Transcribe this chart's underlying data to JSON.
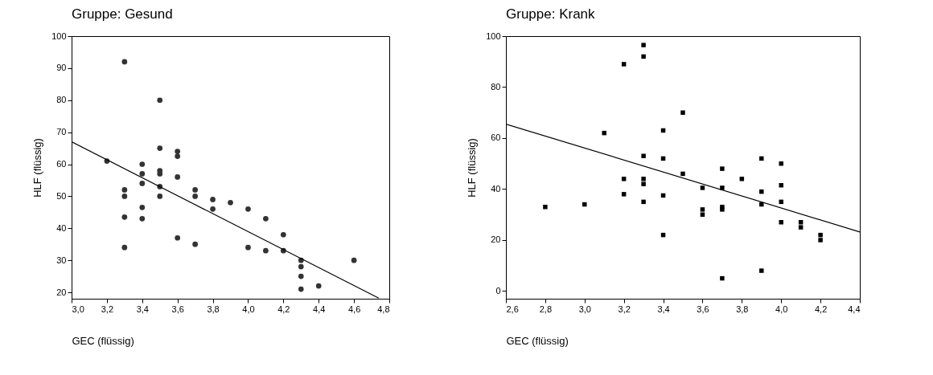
{
  "chart_data": [
    {
      "type": "scatter",
      "title": "Gruppe: Gesund",
      "xlabel": "GEC (flüssig)",
      "ylabel": "HLF (flüssig)",
      "grid": false,
      "xlim": [
        3.0,
        4.8
      ],
      "xticks": [
        {
          "value": 3.0,
          "label": "3,0"
        },
        {
          "value": 3.2,
          "label": "3,2"
        },
        {
          "value": 3.4,
          "label": "3,4"
        },
        {
          "value": 3.6,
          "label": "3,6"
        },
        {
          "value": 3.8,
          "label": "3,8"
        },
        {
          "value": 4.0,
          "label": "4,0"
        },
        {
          "value": 4.2,
          "label": "4,2"
        },
        {
          "value": 4.4,
          "label": "4,4"
        },
        {
          "value": 4.6,
          "label": "4,6"
        },
        {
          "value": 4.8,
          "label": "4,8"
        }
      ],
      "ylim": [
        18,
        100
      ],
      "yticks": [
        20,
        30,
        40,
        50,
        60,
        70,
        80,
        90,
        100
      ],
      "series": [
        {
          "marker": "circle",
          "color": "#333333",
          "x": [
            3.2,
            3.3,
            3.3,
            3.3,
            3.3,
            3.3,
            3.4,
            3.4,
            3.4,
            3.4,
            3.4,
            3.5,
            3.5,
            3.5,
            3.5,
            3.5,
            3.5,
            3.6,
            3.6,
            3.6,
            3.6,
            3.7,
            3.7,
            3.7,
            3.8,
            3.8,
            3.9,
            4.0,
            4.0,
            4.1,
            4.1,
            4.2,
            4.2,
            4.3,
            4.3,
            4.3,
            4.3,
            4.4,
            4.6
          ],
          "values": [
            61,
            92,
            52,
            50,
            43.5,
            34,
            60,
            57,
            54,
            46.5,
            43,
            80,
            65,
            58,
            57,
            53,
            50,
            64,
            62.5,
            56,
            37,
            52,
            50,
            35,
            49,
            46,
            48,
            46,
            34,
            43,
            33,
            38,
            33,
            30,
            28,
            25,
            21,
            22,
            30
          ]
        },
        {
          "type": "line",
          "color": "#000000",
          "x": [
            3.0,
            4.74
          ],
          "values": [
            67,
            18.2
          ]
        }
      ]
    },
    {
      "type": "scatter",
      "title": "Gruppe: Krank",
      "xlabel": "GEC (flüssig)",
      "ylabel": "HLF (flüssig)",
      "grid": false,
      "xlim": [
        2.6,
        4.4
      ],
      "xticks": [
        {
          "value": 2.6,
          "label": "2,6"
        },
        {
          "value": 2.8,
          "label": "2,8"
        },
        {
          "value": 3.0,
          "label": "3,0"
        },
        {
          "value": 3.2,
          "label": "3,2"
        },
        {
          "value": 3.4,
          "label": "3,4"
        },
        {
          "value": 3.6,
          "label": "3,6"
        },
        {
          "value": 3.8,
          "label": "3,8"
        },
        {
          "value": 4.0,
          "label": "4,0"
        },
        {
          "value": 4.2,
          "label": "4,2"
        },
        {
          "value": 4.4,
          "label": "4,4"
        }
      ],
      "ylim": [
        -3,
        100
      ],
      "yticks": [
        0,
        20,
        40,
        60,
        80,
        100
      ],
      "series": [
        {
          "marker": "square",
          "color": "#000000",
          "x": [
            2.8,
            3.0,
            3.1,
            3.2,
            3.2,
            3.2,
            3.3,
            3.3,
            3.3,
            3.3,
            3.3,
            3.3,
            3.4,
            3.4,
            3.4,
            3.4,
            3.5,
            3.5,
            3.6,
            3.6,
            3.6,
            3.7,
            3.7,
            3.7,
            3.7,
            3.7,
            3.8,
            3.9,
            3.9,
            3.9,
            3.9,
            4.0,
            4.0,
            4.0,
            4.0,
            4.1,
            4.1,
            4.2,
            4.2
          ],
          "values": [
            33,
            34,
            62,
            89,
            44,
            38,
            96.5,
            92,
            53,
            44,
            42,
            35,
            63,
            52,
            37.5,
            22,
            70,
            46,
            40.5,
            32,
            30,
            48,
            40.5,
            33,
            32,
            5,
            44,
            52,
            39,
            34,
            8,
            50,
            41.5,
            35,
            27,
            27,
            25,
            22,
            20
          ]
        },
        {
          "type": "line",
          "color": "#000000",
          "x": [
            2.6,
            4.4
          ],
          "values": [
            65.5,
            23.2
          ]
        }
      ]
    }
  ]
}
